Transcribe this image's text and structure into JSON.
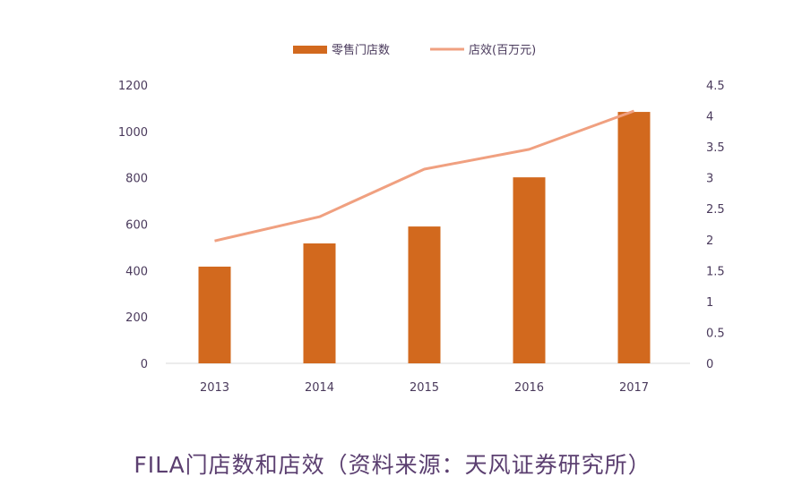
{
  "chart_data": {
    "type": "bar",
    "title": "FILA门店数和店效（资料来源：天风证券研究所）",
    "categories": [
      "2013",
      "2014",
      "2015",
      "2016",
      "2017"
    ],
    "series": [
      {
        "name": "零售门店数",
        "type": "bar",
        "axis": "left",
        "values": [
          417,
          517,
          590,
          802,
          1084
        ],
        "color": "#d2691e"
      },
      {
        "name": "店效(百万元)",
        "type": "line",
        "axis": "right",
        "values": [
          1.98,
          2.37,
          3.14,
          3.46,
          4.08
        ],
        "color": "#f0a080"
      }
    ],
    "left_axis": {
      "ylim": [
        0,
        1200
      ],
      "ticks": [
        "0",
        "200",
        "400",
        "600",
        "800",
        "1000",
        "1200"
      ]
    },
    "right_axis": {
      "ylim": [
        0,
        4.5
      ],
      "ticks": [
        "0",
        "0.5",
        "1",
        "1.5",
        "2",
        "2.5",
        "3",
        "3.5",
        "4",
        "4.5"
      ]
    },
    "grid": false,
    "legend_position": "top"
  }
}
